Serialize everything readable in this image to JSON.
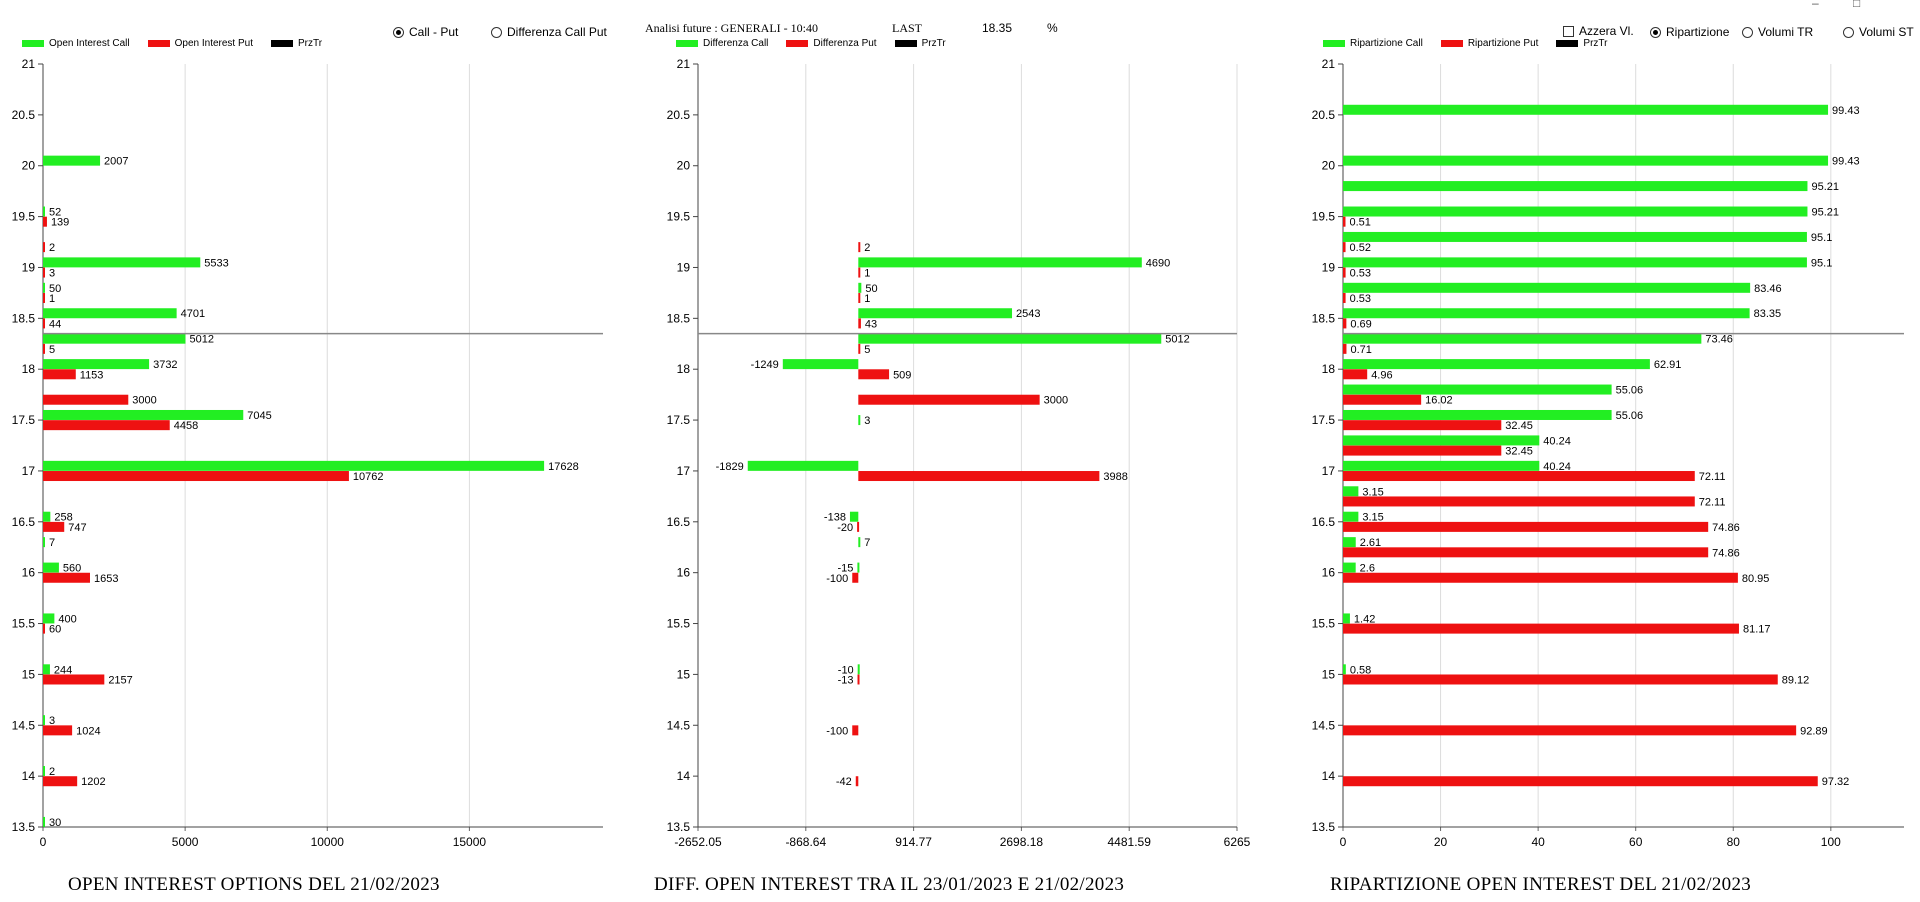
{
  "controls": {
    "radio_call_put": "Call - Put",
    "radio_diff": "Differenza Call Put",
    "analysis_label": "Analisi future : GENERALI - 10:40",
    "last_label": "LAST",
    "last_value": "18.35",
    "percent_sign": "%",
    "check_azzera": "Azzera Vl.",
    "radio_ripartizione": "Ripartizione",
    "radio_volumi_tr": "Volumi TR",
    "radio_volumi_st": "Volumi ST",
    "selected_mode": "Call - Put",
    "selected_view": "Ripartizione"
  },
  "window": {
    "minimize": "–",
    "maximize": "□"
  },
  "colors": {
    "call": "#22ee22",
    "put": "#ee1111",
    "prztr": "#000000",
    "price_line": "#888888"
  },
  "chart_data": [
    {
      "type": "bar",
      "orientation": "horizontal",
      "caption": "OPEN INTEREST OPTIONS DEL 21/02/2023",
      "legend": [
        "Open Interest Call",
        "Open Interest Put",
        "PrzTr"
      ],
      "y_ticks": [
        "13.5",
        "14",
        "14.5",
        "15",
        "15.5",
        "16",
        "16.5",
        "17",
        "17.5",
        "18",
        "18.5",
        "19",
        "19.5",
        "20",
        "20.5",
        "21"
      ],
      "ylim": [
        13.5,
        21
      ],
      "x_ticks": [
        "0",
        "5000",
        "10000",
        "15000"
      ],
      "xlim": [
        0,
        19700
      ],
      "price_line": 18.35,
      "bars": [
        {
          "y": 20.05,
          "v": 2007,
          "s": "call"
        },
        {
          "y": 19.55,
          "v": 52,
          "s": "call"
        },
        {
          "y": 19.45,
          "v": 139,
          "s": "put"
        },
        {
          "y": 19.2,
          "v": 2,
          "s": "put"
        },
        {
          "y": 19.05,
          "v": 5533,
          "s": "call"
        },
        {
          "y": 18.95,
          "v": 3,
          "s": "put"
        },
        {
          "y": 18.8,
          "v": 50,
          "s": "call"
        },
        {
          "y": 18.7,
          "v": 1,
          "s": "put"
        },
        {
          "y": 18.55,
          "v": 4701,
          "s": "call"
        },
        {
          "y": 18.45,
          "v": 44,
          "s": "put"
        },
        {
          "y": 18.3,
          "v": 5012,
          "s": "call"
        },
        {
          "y": 18.2,
          "v": 5,
          "s": "put"
        },
        {
          "y": 18.05,
          "v": 3732,
          "s": "call"
        },
        {
          "y": 17.95,
          "v": 1153,
          "s": "put"
        },
        {
          "y": 17.7,
          "v": 3000,
          "s": "put"
        },
        {
          "y": 17.55,
          "v": 7045,
          "s": "call"
        },
        {
          "y": 17.45,
          "v": 4458,
          "s": "put"
        },
        {
          "y": 17.05,
          "v": 17628,
          "s": "call"
        },
        {
          "y": 16.95,
          "v": 10762,
          "s": "put"
        },
        {
          "y": 16.55,
          "v": 258,
          "s": "call"
        },
        {
          "y": 16.45,
          "v": 747,
          "s": "put"
        },
        {
          "y": 16.3,
          "v": 7,
          "s": "call"
        },
        {
          "y": 16.05,
          "v": 560,
          "s": "call"
        },
        {
          "y": 15.95,
          "v": 1653,
          "s": "put"
        },
        {
          "y": 15.55,
          "v": 400,
          "s": "call"
        },
        {
          "y": 15.45,
          "v": 60,
          "s": "put"
        },
        {
          "y": 15.05,
          "v": 244,
          "s": "call"
        },
        {
          "y": 14.95,
          "v": 2157,
          "s": "put"
        },
        {
          "y": 14.55,
          "v": 3,
          "s": "call"
        },
        {
          "y": 14.45,
          "v": 1024,
          "s": "put"
        },
        {
          "y": 14.05,
          "v": 2,
          "s": "call"
        },
        {
          "y": 13.95,
          "v": 1202,
          "s": "put"
        },
        {
          "y": 13.55,
          "v": 30,
          "s": "call"
        }
      ]
    },
    {
      "type": "bar",
      "orientation": "horizontal",
      "caption": "DIFF. OPEN INTEREST TRA IL 23/01/2023 E 21/02/2023",
      "legend": [
        "Differenza Call",
        "Differenza Put",
        "PrzTr"
      ],
      "y_ticks": [
        "13.5",
        "14",
        "14.5",
        "15",
        "15.5",
        "16",
        "16.5",
        "17",
        "17.5",
        "18",
        "18.5",
        "19",
        "19.5",
        "20",
        "20.5",
        "21"
      ],
      "ylim": [
        13.5,
        21
      ],
      "x_ticks": [
        "-2652.05",
        "-868.64",
        "914.77",
        "2698.18",
        "4481.59",
        "6265"
      ],
      "xlim": [
        -2652.05,
        6265
      ],
      "price_line": 18.35,
      "bars": [
        {
          "y": 19.2,
          "v": 2,
          "s": "put"
        },
        {
          "y": 19.05,
          "v": 4690,
          "s": "call"
        },
        {
          "y": 18.95,
          "v": 1,
          "s": "put"
        },
        {
          "y": 18.8,
          "v": 50,
          "s": "call"
        },
        {
          "y": 18.7,
          "v": 1,
          "s": "put"
        },
        {
          "y": 18.55,
          "v": 2543,
          "s": "call"
        },
        {
          "y": 18.45,
          "v": 43,
          "s": "put"
        },
        {
          "y": 18.3,
          "v": 5012,
          "s": "call"
        },
        {
          "y": 18.2,
          "v": 5,
          "s": "put"
        },
        {
          "y": 18.05,
          "v": -1249,
          "s": "call"
        },
        {
          "y": 17.95,
          "v": 509,
          "s": "put"
        },
        {
          "y": 17.7,
          "v": 3000,
          "s": "put"
        },
        {
          "y": 17.5,
          "v": 3,
          "s": "call"
        },
        {
          "y": 17.05,
          "v": -1829,
          "s": "call"
        },
        {
          "y": 16.95,
          "v": 3988,
          "s": "put"
        },
        {
          "y": 16.55,
          "v": -138,
          "s": "call"
        },
        {
          "y": 16.45,
          "v": -20,
          "s": "put"
        },
        {
          "y": 16.3,
          "v": 7,
          "s": "call"
        },
        {
          "y": 16.05,
          "v": -15,
          "s": "call"
        },
        {
          "y": 15.95,
          "v": -100,
          "s": "put"
        },
        {
          "y": 15.05,
          "v": -10,
          "s": "call"
        },
        {
          "y": 14.95,
          "v": -13,
          "s": "put"
        },
        {
          "y": 14.45,
          "v": -100,
          "s": "put"
        },
        {
          "y": 13.95,
          "v": -42,
          "s": "put"
        }
      ]
    },
    {
      "type": "bar",
      "orientation": "horizontal",
      "caption": "RIPARTIZIONE OPEN INTEREST DEL 21/02/2023",
      "legend": [
        "Ripartizione Call",
        "Ripartizione Put",
        "PrzTr"
      ],
      "y_ticks": [
        "13.5",
        "14",
        "14.5",
        "15",
        "15.5",
        "16",
        "16.5",
        "17",
        "17.5",
        "18",
        "18.5",
        "19",
        "19.5",
        "20",
        "20.5",
        "21"
      ],
      "ylim": [
        13.5,
        21
      ],
      "x_ticks": [
        "0",
        "20",
        "40",
        "60",
        "80",
        "100"
      ],
      "xlim": [
        0,
        115
      ],
      "price_line": 18.35,
      "bars": [
        {
          "y": 20.55,
          "v": 99.43,
          "s": "call"
        },
        {
          "y": 20.05,
          "v": 99.43,
          "s": "call"
        },
        {
          "y": 19.8,
          "v": 95.21,
          "s": "call"
        },
        {
          "y": 19.55,
          "v": 95.21,
          "s": "call"
        },
        {
          "y": 19.45,
          "v": 0.51,
          "s": "put"
        },
        {
          "y": 19.3,
          "v": 95.1,
          "s": "call"
        },
        {
          "y": 19.2,
          "v": 0.52,
          "s": "put"
        },
        {
          "y": 19.05,
          "v": 95.1,
          "s": "call"
        },
        {
          "y": 18.95,
          "v": 0.53,
          "s": "put"
        },
        {
          "y": 18.8,
          "v": 83.46,
          "s": "call"
        },
        {
          "y": 18.7,
          "v": 0.53,
          "s": "put"
        },
        {
          "y": 18.55,
          "v": 83.35,
          "s": "call"
        },
        {
          "y": 18.45,
          "v": 0.69,
          "s": "put"
        },
        {
          "y": 18.3,
          "v": 73.46,
          "s": "call"
        },
        {
          "y": 18.2,
          "v": 0.71,
          "s": "put"
        },
        {
          "y": 18.05,
          "v": 62.91,
          "s": "call"
        },
        {
          "y": 17.95,
          "v": 4.96,
          "s": "put"
        },
        {
          "y": 17.8,
          "v": 55.06,
          "s": "call"
        },
        {
          "y": 17.7,
          "v": 16.02,
          "s": "put"
        },
        {
          "y": 17.55,
          "v": 55.06,
          "s": "call"
        },
        {
          "y": 17.45,
          "v": 32.45,
          "s": "put"
        },
        {
          "y": 17.3,
          "v": 40.24,
          "s": "call"
        },
        {
          "y": 17.2,
          "v": 32.45,
          "s": "put"
        },
        {
          "y": 17.05,
          "v": 40.24,
          "s": "call"
        },
        {
          "y": 16.95,
          "v": 72.11,
          "s": "put"
        },
        {
          "y": 16.8,
          "v": 3.15,
          "s": "call"
        },
        {
          "y": 16.7,
          "v": 72.11,
          "s": "put"
        },
        {
          "y": 16.55,
          "v": 3.15,
          "s": "call"
        },
        {
          "y": 16.45,
          "v": 74.86,
          "s": "put"
        },
        {
          "y": 16.3,
          "v": 2.61,
          "s": "call"
        },
        {
          "y": 16.2,
          "v": 74.86,
          "s": "put"
        },
        {
          "y": 16.05,
          "v": 2.6,
          "s": "call"
        },
        {
          "y": 15.95,
          "v": 80.95,
          "s": "put"
        },
        {
          "y": 15.55,
          "v": 1.42,
          "s": "call"
        },
        {
          "y": 15.45,
          "v": 81.17,
          "s": "put"
        },
        {
          "y": 15.05,
          "v": 0.58,
          "s": "call"
        },
        {
          "y": 14.95,
          "v": 89.12,
          "s": "put"
        },
        {
          "y": 14.45,
          "v": 92.89,
          "s": "put"
        },
        {
          "y": 13.95,
          "v": 97.32,
          "s": "put"
        }
      ]
    }
  ]
}
